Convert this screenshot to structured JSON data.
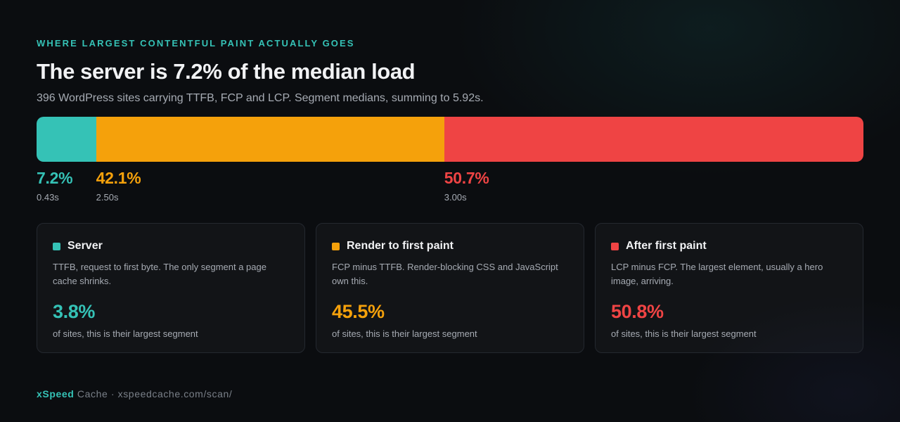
{
  "header": {
    "eyebrow": "WHERE LARGEST CONTENTFUL PAINT ACTUALLY GOES",
    "title": "The server is 7.2% of the median load",
    "subtitle": "396 WordPress sites carrying TTFB, FCP and LCP. Segment medians, summing to 5.92s."
  },
  "chart_data": {
    "type": "bar",
    "orientation": "horizontal-stacked",
    "title": "The server is 7.2% of the median load",
    "total_seconds": 5.92,
    "segments": [
      {
        "pct_label": "7.2%",
        "time_label": "0.43s",
        "value": 0.43,
        "percent": 7.2,
        "color": "#35c2b6"
      },
      {
        "pct_label": "42.1%",
        "time_label": "2.50s",
        "value": 2.5,
        "percent": 42.1,
        "color": "#f5a10b"
      },
      {
        "pct_label": "50.7%",
        "time_label": "3.00s",
        "value": 3.0,
        "percent": 50.7,
        "color": "#ef4444"
      }
    ]
  },
  "cards": [
    {
      "title": "Server",
      "desc": "TTFB, request to first byte. The only segment a page cache shrinks.",
      "stat": "3.8%",
      "note": "of sites, this is their largest segment",
      "color": "#35c2b6"
    },
    {
      "title": "Render to first paint",
      "desc": "FCP minus TTFB. Render-blocking CSS and JavaScript own this.",
      "stat": "45.5%",
      "note": "of sites, this is their largest segment",
      "color": "#f5a10b"
    },
    {
      "title": "After first paint",
      "desc": "LCP minus FCP. The largest element, usually a hero image, arriving.",
      "stat": "50.8%",
      "note": "of sites, this is their largest segment",
      "color": "#ef4444"
    }
  ],
  "footer": {
    "brand": "xSpeed",
    "rest": " Cache · xspeedcache.com/scan/"
  }
}
